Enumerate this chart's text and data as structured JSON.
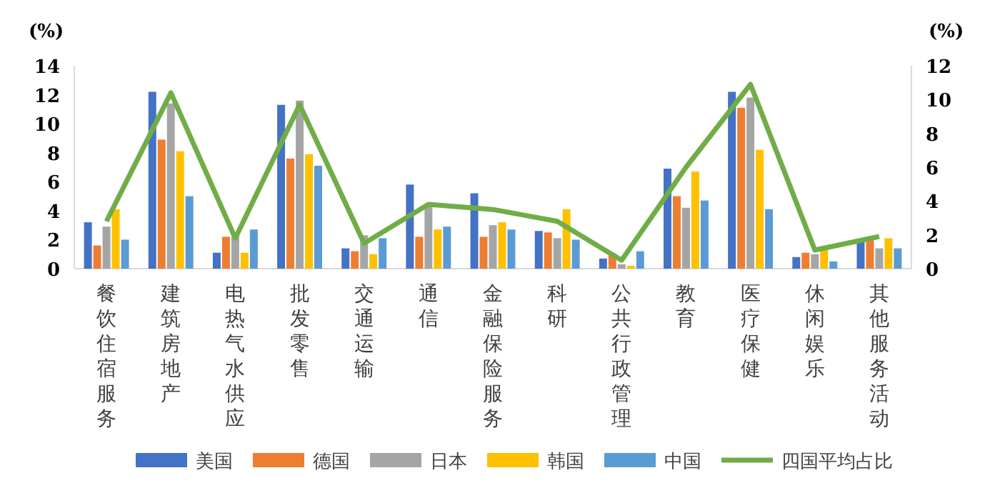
{
  "chart_data": {
    "type": "bar",
    "ylabel": "(%)",
    "y2label": "(%)",
    "categories": [
      "餐饮住宿服务",
      "建筑房地产",
      "电热气水供应",
      "批发零售",
      "交通运输",
      "通信",
      "金融保险服务",
      "科研",
      "公共行政管理",
      "教育",
      "医疗保健",
      "休闲娱乐",
      "其他服务活动"
    ],
    "series": [
      {
        "name": "美国",
        "color": "#4472c4",
        "values": [
          3.2,
          12.2,
          1.1,
          11.3,
          1.4,
          5.8,
          5.2,
          2.6,
          0.7,
          6.9,
          12.2,
          0.8,
          2.0
        ]
      },
      {
        "name": "德国",
        "color": "#ed7d31",
        "values": [
          1.6,
          8.9,
          2.2,
          7.6,
          1.2,
          2.2,
          2.2,
          2.5,
          1.0,
          5.0,
          11.1,
          1.1,
          2.2
        ]
      },
      {
        "name": "日本",
        "color": "#a5a5a5",
        "values": [
          2.9,
          11.4,
          2.3,
          11.6,
          2.3,
          4.3,
          3.0,
          2.1,
          0.3,
          4.2,
          11.8,
          1.0,
          1.4
        ]
      },
      {
        "name": "韩国",
        "color": "#ffc000",
        "values": [
          4.1,
          8.1,
          1.1,
          7.9,
          1.0,
          2.7,
          3.2,
          4.1,
          0.2,
          6.7,
          8.2,
          1.3,
          2.1
        ]
      },
      {
        "name": "中国",
        "color": "#5b9bd5",
        "values": [
          2.0,
          5.0,
          2.7,
          7.1,
          2.1,
          2.9,
          2.7,
          2.0,
          1.2,
          4.7,
          4.1,
          0.5,
          1.4
        ]
      },
      {
        "name": "四国平均占比",
        "color": "#70ad47",
        "type": "line",
        "axis": "y2",
        "values": [
          2.8,
          10.4,
          1.8,
          9.7,
          1.5,
          3.8,
          3.5,
          2.8,
          0.5,
          6.0,
          10.9,
          1.1,
          1.9
        ]
      }
    ],
    "ylim": [
      0,
      14
    ],
    "yticks": [
      0,
      2,
      4,
      6,
      8,
      10,
      12,
      14
    ],
    "y2lim": [
      0,
      12
    ],
    "y2ticks": [
      0,
      2,
      4,
      6,
      8,
      10,
      12
    ],
    "legend": "bottom",
    "grid": false
  }
}
